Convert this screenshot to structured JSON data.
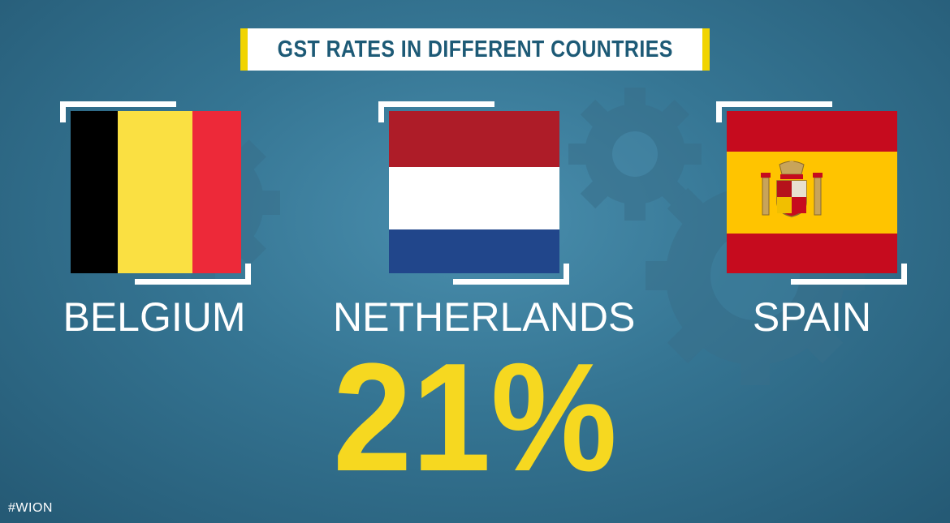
{
  "title": "GST RATES IN DIFFERENT COUNTRIES",
  "countries": [
    {
      "name": "BELGIUM",
      "flag": "belgium-flag",
      "colors": [
        "#000000",
        "#fae042",
        "#ed2939"
      ]
    },
    {
      "name": "NETHERLANDS",
      "flag": "netherlands-flag",
      "colors": [
        "#ae1c28",
        "#ffffff",
        "#21468b"
      ]
    },
    {
      "name": "SPAIN",
      "flag": "spain-flag",
      "colors": [
        "#c60b1e",
        "#ffc400",
        "#c60b1e"
      ]
    }
  ],
  "rate": "21%",
  "hashtag": "#WION",
  "accent_color": "#f6d820",
  "background_color": "#357593"
}
